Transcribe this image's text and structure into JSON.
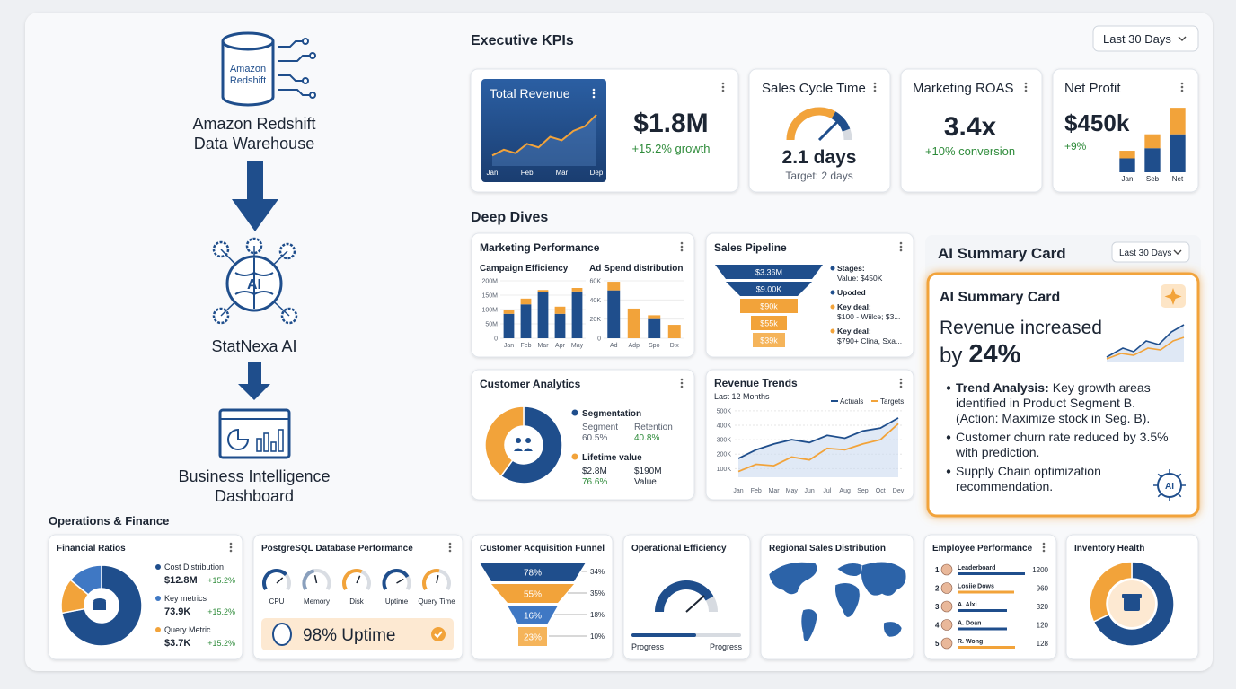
{
  "pipeline": {
    "source_icon": [
      "Amazon",
      "Redshift"
    ],
    "source": [
      "Amazon Redshift",
      "Data Warehouse"
    ],
    "ai_icon": "AI",
    "ai": "StatNexa AI",
    "target": [
      "Business Intelligence",
      "Dashboard"
    ]
  },
  "operations_title": "Operations & Finance",
  "kpis": {
    "title": "Executive KPIs",
    "filter": "Last 30 Days",
    "revenue": {
      "title": "Total Revenue",
      "value": "$1.8M",
      "delta": "+15.2% growth",
      "chart": {
        "type": "line",
        "categories": [
          "Jan",
          null,
          null,
          "Feb",
          null,
          null,
          "Mar",
          null,
          null,
          "Dep"
        ],
        "values": [
          18,
          28,
          22,
          38,
          32,
          50,
          44,
          60,
          68,
          88
        ],
        "ylim": [
          0,
          100
        ],
        "color": "#f2a33a"
      }
    },
    "cycle": {
      "title": "Sales Cycle Time",
      "value": "2.1 days",
      "target": "Target: 2 days"
    },
    "roas": {
      "title": "Marketing ROAS",
      "value": "3.4x",
      "delta": "+10% conversion"
    },
    "profit": {
      "title": "Net Profit",
      "value": "$450k",
      "delta": "+9%",
      "chart": {
        "type": "bar",
        "categories": [
          "Jan",
          "Seb",
          "Net"
        ],
        "series": [
          {
            "color": "#1f4e8c",
            "values": [
              22,
              38,
              60
            ]
          },
          {
            "color": "#f2a33a",
            "values": [
              12,
              22,
              42
            ]
          }
        ],
        "ylim": [
          0,
          105
        ]
      }
    }
  },
  "deep_dives": {
    "title": "Deep Dives",
    "marketing": {
      "title": "Marketing Performance",
      "campaign": {
        "type": "bar",
        "title": "Campaign Efficiency",
        "categories": [
          "Jan",
          "Feb",
          "Mar",
          "Apr",
          "May"
        ],
        "series": [
          {
            "color": "#1f4e8c",
            "values": [
              85,
              118,
              160,
              85,
              163
            ]
          },
          {
            "color": "#f2a33a",
            "values": [
              12,
              20,
              8,
              25,
              12
            ]
          }
        ],
        "ylim": [
          0,
          200
        ],
        "yticks": [
          0,
          {
            "value": 50,
            "label": "50M"
          },
          {
            "value": 100,
            "label": "100M"
          },
          {
            "value": 150,
            "label": "150M"
          },
          {
            "value": 200,
            "label": "200M"
          }
        ]
      },
      "adspend": {
        "type": "bar",
        "title": "Ad Spend distribution",
        "categories": [
          "Ad",
          "Adp",
          "Spo",
          "Dix"
        ],
        "series": [
          {
            "color": "#1f4e8c",
            "values": [
              50,
              null,
              20,
              null
            ]
          },
          {
            "color": "#f2a33a",
            "values": [
              9,
              31,
              4,
              14
            ]
          }
        ],
        "ylim": [
          0,
          60
        ],
        "yticks": [
          0,
          {
            "value": 20,
            "label": "20K"
          },
          {
            "value": 40,
            "label": "40K"
          },
          {
            "value": 60,
            "label": "60K"
          }
        ]
      }
    },
    "pipeline": {
      "title": "Sales Pipeline",
      "stages": [
        {
          "label": "$3.36M",
          "color": "#1f4e8c"
        },
        {
          "label": "$9.00K",
          "color": "#1f4e8c"
        },
        {
          "label": "$90k",
          "color": "#f2a33a"
        },
        {
          "label": "$55k",
          "color": "#f2a33a"
        },
        {
          "label": "$39k",
          "color": "#f5b45a"
        }
      ],
      "notes": [
        {
          "color": "#1f4e8c",
          "lines": [
            "Stages:",
            "Value: $450K"
          ]
        },
        {
          "color": "#1f4e8c",
          "lines": [
            "Upoded"
          ]
        },
        {
          "color": "#f2a33a",
          "lines": [
            "Key deal:",
            "$100 - Wiilce; $3..."
          ]
        },
        {
          "color": "#f2a33a",
          "lines": [
            "Key deal:",
            "$790+ Clina, Sxa..."
          ]
        }
      ]
    },
    "customers": {
      "title": "Customer Analytics",
      "donut": {
        "type": "pie",
        "values": [
          60,
          40
        ],
        "colors": [
          "#1f4e8c",
          "#f2a33a"
        ]
      },
      "segmentation": {
        "title": "Segmentation",
        "cols": [
          [
            "Segment",
            "60.5%"
          ],
          [
            "Retention",
            "40.8%"
          ]
        ]
      },
      "lifetime": {
        "title": "Lifetime value",
        "cols": [
          [
            "$2.8M",
            "76.6%"
          ],
          [
            "$190M",
            "Value"
          ]
        ]
      }
    },
    "trends": {
      "type": "line",
      "title": "Revenue Trends",
      "subtitle": "Last 12 Months",
      "categories": [
        "Jan",
        "Feb",
        "Mar",
        "May",
        "Jun",
        "Jul",
        "Aug",
        "Sep",
        "Oct",
        "Dev"
      ],
      "series": [
        {
          "name": "Actuals",
          "color": "#1f4e8c",
          "values": [
            170,
            230,
            270,
            300,
            280,
            330,
            310,
            360,
            380,
            450
          ]
        },
        {
          "name": "Targets",
          "color": "#f2a33a",
          "values": [
            80,
            130,
            120,
            180,
            160,
            240,
            230,
            270,
            300,
            410
          ]
        }
      ],
      "ylim": [
        40,
        530
      ],
      "yticks": [
        {
          "value": 100,
          "label": "100K"
        },
        {
          "value": 200,
          "label": "200K"
        },
        {
          "value": 300,
          "label": "300K"
        },
        {
          "value": 400,
          "label": "400K"
        },
        {
          "value": 500,
          "label": "500K"
        }
      ]
    }
  },
  "ai_summary": {
    "title": "AI Summary Card",
    "filter": "Last 30 Days",
    "card_title": "AI Summary Card",
    "headline": [
      "Revenue increased",
      "by",
      "24%"
    ],
    "bullets": [
      {
        "lead": "Trend Analysis:",
        "lines": [
          "Key growth areas",
          "identified in Product Segment B.",
          "(Action: Maximize stock in Seg. B)."
        ]
      },
      {
        "lines": [
          "Customer churn rate reduced by 3.5%",
          "with prediction."
        ]
      },
      {
        "lines": [
          "Supply Chain optimization",
          "recommendation."
        ]
      }
    ],
    "icon": "AI"
  },
  "operations": {
    "ratios": {
      "title": "Financial Ratios",
      "donut": {
        "type": "pie",
        "values": [
          72,
          14,
          14
        ],
        "colors": [
          "#1f4e8c",
          "#f2a33a",
          "#3f78c4"
        ]
      },
      "items": [
        {
          "label": "Cost Distribution",
          "value": "$12.8M",
          "delta": "+15.2%",
          "color": "#1f4e8c"
        },
        {
          "label": "Key metrics",
          "value": "73.9K",
          "delta": "+15.2%",
          "color": "#3f78c4"
        },
        {
          "label": "Query Metric",
          "value": "$3.7K",
          "delta": "+15.2%",
          "color": "#f2a33a"
        }
      ]
    },
    "postgres": {
      "title": "PostgreSQL Database Performance",
      "gauges": [
        {
          "label": "CPU",
          "color": "#1f4e8c"
        },
        {
          "label": "Memory",
          "color": "#8aa0bd"
        },
        {
          "label": "Disk",
          "color": "#f2a33a"
        },
        {
          "label": "Uptime",
          "color": "#1f4e8c"
        },
        {
          "label": "Query Time",
          "color": "#f2a33a"
        }
      ],
      "uptime": "98% Uptime"
    },
    "acquisition": {
      "title": "Customer Acquisition Funnel",
      "stages": [
        {
          "label": "78%",
          "side": "34%",
          "color": "#1f4e8c"
        },
        {
          "label": "55%",
          "side": "35%",
          "color": "#f2a33a"
        },
        {
          "label": "16%",
          "side": "18%",
          "color": "#3f78c4"
        },
        {
          "label": "23%",
          "side": "10%",
          "color": "#f5b45a"
        }
      ]
    },
    "efficiency": {
      "title": "Operational Efficiency",
      "labels": [
        "Progress",
        "Progress"
      ]
    },
    "regional": {
      "title": "Regional Sales Distribution"
    },
    "employees": {
      "title": "Employee Performance",
      "rows": [
        {
          "rank": 1,
          "name": "Leaderboard",
          "score": 1200,
          "color": "#1f4e8c"
        },
        {
          "rank": 2,
          "name": "Losiie Dows",
          "score": 960,
          "color": "#f2a33a"
        },
        {
          "rank": 3,
          "name": "A. Alxi",
          "score": 320,
          "color": "#1f4e8c"
        },
        {
          "rank": 4,
          "name": "A. Doan",
          "score": 120,
          "color": "#1f4e8c"
        },
        {
          "rank": 5,
          "name": "R. Wong",
          "score": 128,
          "color": "#f2a33a"
        }
      ]
    },
    "inventory": {
      "title": "Inventory Health",
      "donut": {
        "type": "pie",
        "values": [
          68,
          32
        ],
        "colors": [
          "#1f4e8c",
          "#f2a33a"
        ]
      }
    }
  }
}
